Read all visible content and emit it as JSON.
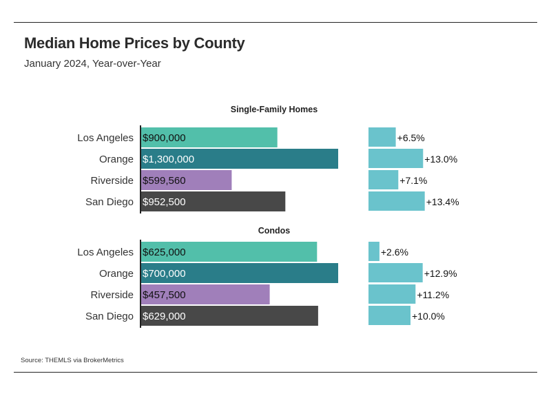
{
  "header": {
    "title": "Median Home Prices by County",
    "subtitle": "January 2024, Year-over-Year"
  },
  "footer": {
    "source": "Source:  THEMLS via BrokerMetrics"
  },
  "colors": {
    "Los Angeles": "#52bfaa",
    "Orange": "#2a7d89",
    "Riverside": "#a07fba",
    "San Diego": "#484848",
    "change_bar": "#6ac3cc",
    "axis": "#222222"
  },
  "chart_data": [
    {
      "type": "bar",
      "title": "Single-Family Homes",
      "categories": [
        "Los Angeles",
        "Orange",
        "Riverside",
        "San Diego"
      ],
      "values": [
        900000,
        1300000,
        599560,
        952500
      ],
      "value_labels": [
        "$900,000",
        "$1,300,000",
        "$599,560",
        "$952,500"
      ],
      "value_label_colors": [
        "#111111",
        "#ffffff",
        "#111111",
        "#ffffff"
      ],
      "yoy_change": [
        6.5,
        13.0,
        7.1,
        13.4
      ],
      "yoy_labels": [
        "+6.5%",
        "+13.0%",
        "+7.1%",
        "+13.4%"
      ],
      "orientation": "horizontal",
      "xlim": [
        0,
        1300000
      ],
      "change_xlim": [
        0,
        13.4
      ]
    },
    {
      "type": "bar",
      "title": "Condos",
      "categories": [
        "Los Angeles",
        "Orange",
        "Riverside",
        "San Diego"
      ],
      "values": [
        625000,
        700000,
        457500,
        629000
      ],
      "value_labels": [
        "$625,000",
        "$700,000",
        "$457,500",
        "$629,000"
      ],
      "value_label_colors": [
        "#111111",
        "#ffffff",
        "#111111",
        "#ffffff"
      ],
      "yoy_change": [
        2.6,
        12.9,
        11.2,
        10.0
      ],
      "yoy_labels": [
        "+2.6%",
        "+12.9%",
        "+11.2%",
        "+10.0%"
      ],
      "orientation": "horizontal",
      "xlim": [
        0,
        700000
      ],
      "change_xlim": [
        0,
        13.4
      ]
    }
  ]
}
